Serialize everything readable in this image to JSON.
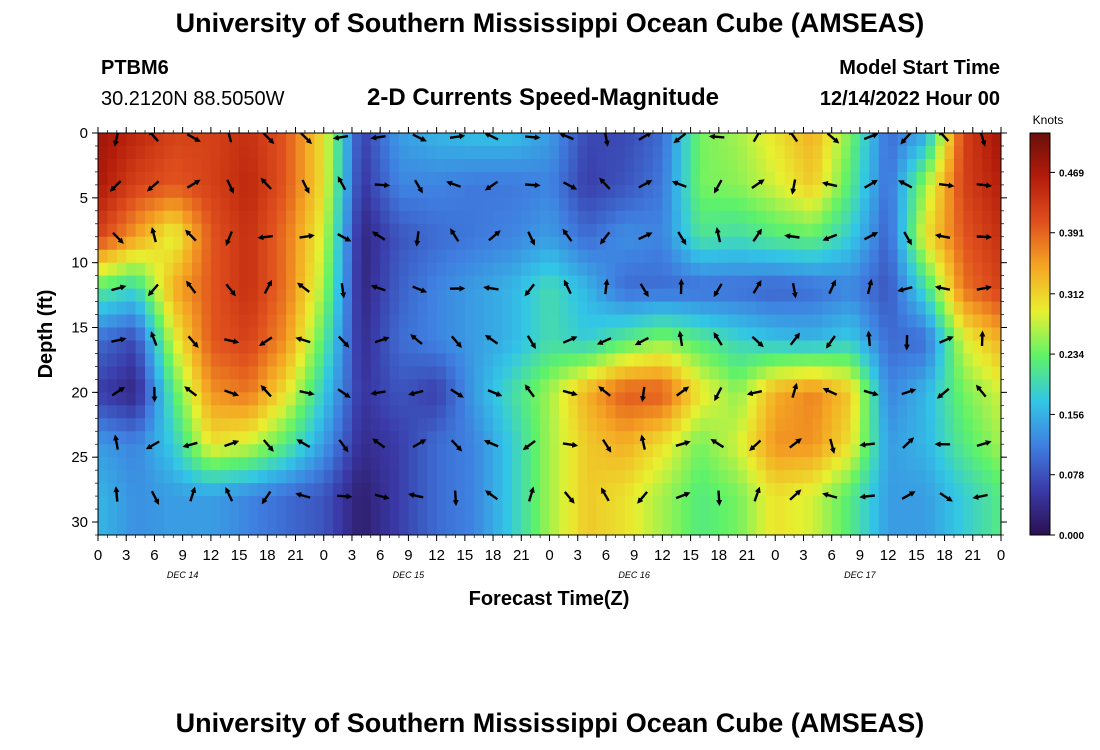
{
  "page": {
    "title": "University of Southern Mississippi Ocean Cube (AMSEAS)",
    "station_id": "PTBM6",
    "location": "30.2120N  88.5050W",
    "subtitle": "2-D Currents Speed-Magnitude",
    "model_start_label": "Model Start Time",
    "model_start_value": "12/14/2022 Hour 00",
    "bottom_title": "University of Southern Mississippi Ocean Cube (AMSEAS)"
  },
  "chart_data": {
    "type": "heatmap",
    "title": "2-D Currents Speed-Magnitude",
    "xlabel": "Forecast Time(Z)",
    "ylabel": "Depth (ft)",
    "x_ticks": [
      "0",
      "3",
      "6",
      "9",
      "12",
      "15",
      "18",
      "21",
      "0",
      "3",
      "6",
      "9",
      "12",
      "15",
      "18",
      "21",
      "0",
      "3",
      "6",
      "9",
      "12",
      "15",
      "18",
      "21",
      "0",
      "3",
      "6",
      "9",
      "12",
      "15",
      "18",
      "21",
      "0"
    ],
    "x_range_hours": [
      0,
      96
    ],
    "date_labels": [
      {
        "label": "DEC 14",
        "hour": 9
      },
      {
        "label": "DEC 15",
        "hour": 33
      },
      {
        "label": "DEC 16",
        "hour": 57
      },
      {
        "label": "DEC 17",
        "hour": 81
      }
    ],
    "y_ticks": [
      0,
      5,
      10,
      15,
      20,
      25,
      30
    ],
    "y_range": [
      0,
      31
    ],
    "colorbar": {
      "unit": "Knots",
      "range": [
        0,
        0.52
      ],
      "tick_labels": [
        "0.000",
        "0.078",
        "0.156",
        "0.234",
        "0.312",
        "0.391",
        "0.469"
      ],
      "tick_values": [
        0,
        0.078,
        0.156,
        0.234,
        0.312,
        0.391,
        0.469
      ]
    },
    "colors": [
      "#2a1050",
      "#3a3aa8",
      "#3f7fe0",
      "#32c6e6",
      "#5ef26a",
      "#e8f030",
      "#f5a623",
      "#e0501e",
      "#b41c0a",
      "#6a0f0a"
    ],
    "grid_hours": [
      0,
      4,
      8,
      12,
      16,
      20,
      24,
      28,
      32,
      36,
      40,
      44,
      48,
      52,
      56,
      60,
      64,
      68,
      72,
      76,
      80,
      84,
      88,
      92,
      96
    ],
    "grid_depths": [
      0,
      4,
      8,
      12,
      16,
      20,
      24,
      28
    ],
    "speed_knots": [
      [
        0.48,
        0.45,
        0.42,
        0.42,
        0.44,
        0.4,
        0.3,
        0.06,
        0.14,
        0.16,
        0.17,
        0.17,
        0.14,
        0.07,
        0.07,
        0.1,
        0.24,
        0.26,
        0.3,
        0.34,
        0.24,
        0.1,
        0.15,
        0.42,
        0.48
      ],
      [
        0.47,
        0.42,
        0.4,
        0.42,
        0.45,
        0.4,
        0.3,
        0.05,
        0.12,
        0.12,
        0.11,
        0.11,
        0.12,
        0.06,
        0.08,
        0.11,
        0.24,
        0.25,
        0.28,
        0.32,
        0.22,
        0.1,
        0.26,
        0.42,
        0.46
      ],
      [
        0.42,
        0.35,
        0.28,
        0.4,
        0.44,
        0.38,
        0.28,
        0.03,
        0.08,
        0.1,
        0.11,
        0.12,
        0.14,
        0.1,
        0.13,
        0.12,
        0.21,
        0.2,
        0.22,
        0.23,
        0.18,
        0.09,
        0.3,
        0.4,
        0.44
      ],
      [
        0.22,
        0.19,
        0.34,
        0.4,
        0.44,
        0.38,
        0.26,
        0.03,
        0.09,
        0.12,
        0.14,
        0.16,
        0.2,
        0.16,
        0.1,
        0.1,
        0.1,
        0.1,
        0.09,
        0.1,
        0.12,
        0.08,
        0.2,
        0.38,
        0.42
      ],
      [
        0.1,
        0.07,
        0.28,
        0.4,
        0.42,
        0.36,
        0.22,
        0.04,
        0.1,
        0.12,
        0.14,
        0.16,
        0.2,
        0.18,
        0.22,
        0.25,
        0.22,
        0.19,
        0.17,
        0.16,
        0.18,
        0.1,
        0.1,
        0.28,
        0.34
      ],
      [
        0.06,
        0.03,
        0.22,
        0.36,
        0.38,
        0.3,
        0.18,
        0.05,
        0.08,
        0.06,
        0.14,
        0.2,
        0.26,
        0.34,
        0.4,
        0.4,
        0.3,
        0.25,
        0.34,
        0.37,
        0.32,
        0.12,
        0.16,
        0.24,
        0.28
      ],
      [
        0.14,
        0.12,
        0.18,
        0.3,
        0.28,
        0.22,
        0.14,
        0.04,
        0.06,
        0.1,
        0.12,
        0.18,
        0.26,
        0.32,
        0.34,
        0.3,
        0.24,
        0.28,
        0.36,
        0.36,
        0.3,
        0.14,
        0.16,
        0.22,
        0.26
      ],
      [
        0.16,
        0.13,
        0.14,
        0.14,
        0.12,
        0.1,
        0.08,
        0.02,
        0.06,
        0.1,
        0.12,
        0.18,
        0.26,
        0.32,
        0.3,
        0.26,
        0.22,
        0.24,
        0.3,
        0.28,
        0.22,
        0.14,
        0.14,
        0.18,
        0.22
      ]
    ]
  }
}
